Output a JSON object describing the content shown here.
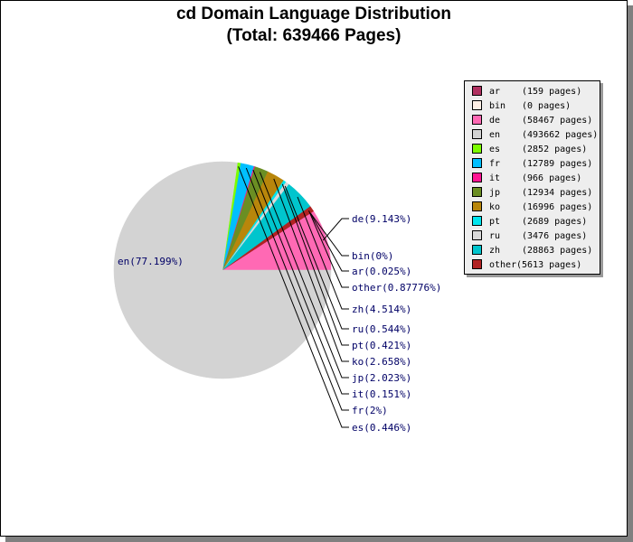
{
  "chart_data": {
    "type": "pie",
    "title": "cd Domain Language Distribution",
    "subtitle": "(Total: 639466 Pages)",
    "slices": [
      {
        "name": "ar",
        "pages": "159 pages",
        "value": 159,
        "percent_label": "ar(0.025%)",
        "color": "#b03060"
      },
      {
        "name": "bin",
        "pages": "0 pages",
        "value": 0,
        "percent_label": "bin(0%)",
        "color": "#fff0e6"
      },
      {
        "name": "de",
        "pages": "58467 pages",
        "value": 58467,
        "percent_label": "de(9.143%)",
        "color": "#ff69b4"
      },
      {
        "name": "en",
        "pages": "493662 pages",
        "value": 493662,
        "percent_label": "en(77.199%)",
        "color": "#d3d3d3"
      },
      {
        "name": "es",
        "pages": "2852 pages",
        "value": 2852,
        "percent_label": "es(0.446%)",
        "color": "#7cfc00"
      },
      {
        "name": "fr",
        "pages": "12789 pages",
        "value": 12789,
        "percent_label": "fr(2%)",
        "color": "#00bfff"
      },
      {
        "name": "it",
        "pages": "966 pages",
        "value": 966,
        "percent_label": "it(0.151%)",
        "color": "#ff1493"
      },
      {
        "name": "jp",
        "pages": "12934 pages",
        "value": 12934,
        "percent_label": "jp(2.023%)",
        "color": "#6b8e23"
      },
      {
        "name": "ko",
        "pages": "16996 pages",
        "value": 16996,
        "percent_label": "ko(2.658%)",
        "color": "#b8860b"
      },
      {
        "name": "pt",
        "pages": "2689 pages",
        "value": 2689,
        "percent_label": "pt(0.421%)",
        "color": "#00e5ee"
      },
      {
        "name": "ru",
        "pages": "3476 pages",
        "value": 3476,
        "percent_label": "ru(0.544%)",
        "color": "#d9d9d9"
      },
      {
        "name": "zh",
        "pages": "28863 pages",
        "value": 28863,
        "percent_label": "zh(4.514%)",
        "color": "#00c5cd"
      },
      {
        "name": "other",
        "pages": "5613 pages",
        "value": 5613,
        "percent_label": "other(0.87776%)",
        "color": "#b22222"
      }
    ],
    "legend_position": "right"
  }
}
